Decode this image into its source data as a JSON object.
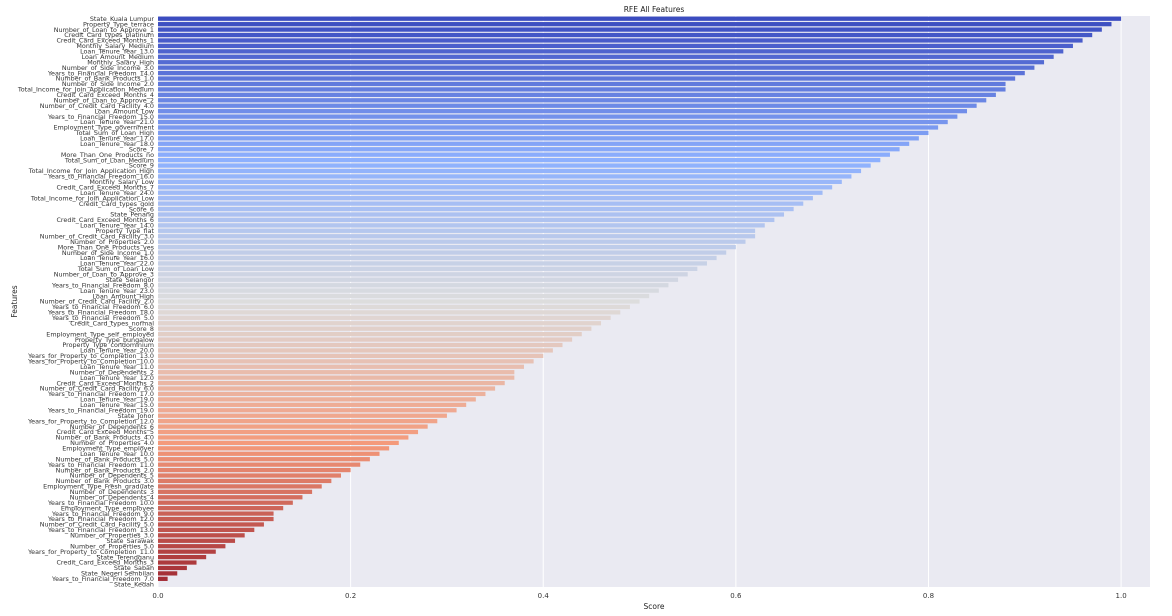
{
  "chart_data": {
    "type": "bar",
    "orientation": "horizontal",
    "title": "RFE All Features",
    "xlabel": "Score",
    "ylabel": "Features",
    "xlim": [
      0.0,
      1.03
    ],
    "xticks": [
      "0.0",
      "0.2",
      "0.4",
      "0.6",
      "0.8",
      "1.0"
    ],
    "grid": true,
    "colormap": "coolwarm (blue at top, red at bottom)",
    "categories": [
      "State_Kuala Lumpur",
      "Property_Type_terrace",
      "Number_of_Loan_to_Approve_1",
      "Credit_Card_types_platinum",
      "Credit_Card_Exceed_Months_1",
      "Monthly_Salary_Medium",
      "Loan_Tenure_Year_13.0",
      "Loan_Amount_Medium",
      "Monthly_Salary_High",
      "Number_of_Side_Income_3.0",
      "Years_to_Financial_Freedom_14.0",
      "Number_of_Bank_Products_1.0",
      "Number_of_Side_Income_2.0",
      "Total_Income_for_Join_Application_Medium",
      "Credit_Card_Exceed_Months_4",
      "Number_of_Loan_to_Approve_2",
      "Number_of_Credit_Card_Facility_4.0",
      "Loan_Amount_Low",
      "Years_to_Financial_Freedom_15.0",
      "Loan_Tenure_Year_21.0",
      "Employment_Type_government",
      "Total_Sum_of_Loan_High",
      "Loan_Tenure_Year_17.0",
      "Loan_Tenure_Year_18.0",
      "Score_7",
      "More_Than_One_Products_no",
      "Total_Sum_of_Loan_Medium",
      "Score_9",
      "Total_Income_for_Join_Application_High",
      "Years_to_Financial_Freedom_16.0",
      "Monthly_Salary_Low",
      "Credit_Card_Exceed_Months_7",
      "Loan_Tenure_Year_24.0",
      "Total_Income_for_Join_Application_Low",
      "Credit_Card_types_gold",
      "Score_6",
      "State_Penang",
      "Credit_Card_Exceed_Months_6",
      "Loan_Tenure_Year_14.0",
      "Property_Type_flat",
      "Number_of_Credit_Card_Facility_3.0",
      "Number_of_Properties_2.0",
      "More_Than_One_Products_yes",
      "Number_of_Side_Income_1.0",
      "Loan_Tenure_Year_16.0",
      "Loan_Tenure_Year_22.0",
      "Total_Sum_of_Loan_Low",
      "Number_of_Loan_to_Approve_3",
      "State_Selangor",
      "Years_to_Financial_Freedom_8.0",
      "Loan_Tenure_Year_23.0",
      "Loan_Amount_High",
      "Number_of_Credit_Card_Facility_2.0",
      "Years_to_Financial_Freedom_6.0",
      "Years_to_Financial_Freedom_18.0",
      "Years_to_Financial_Freedom_5.0",
      "Credit_Card_types_normal",
      "Score_8",
      "Employment_Type_self_employed",
      "Property_Type_bungalow",
      "Property_Type_condominium",
      "Loan_Tenure_Year_20.0",
      "Years_for_Property_to_Completion_13.0",
      "Years_for_Property_to_Completion_10.0",
      "Loan_Tenure_Year_11.0",
      "Number_of_Dependents_2",
      "Loan_Tenure_Year_12.0",
      "Credit_Card_Exceed_Months_2",
      "Number_of_Credit_Card_Facility_6.0",
      "Years_to_Financial_Freedom_17.0",
      "Loan_Tenure_Year_19.0",
      "Loan_Tenure_Year_15.0",
      "Years_to_Financial_Freedom_19.0",
      "State_Johor",
      "Years_for_Property_to_Completion_12.0",
      "Number_of_Dependents_6",
      "Credit_Card_Exceed_Months_5",
      "Number_of_Bank_Products_4.0",
      "Number_of_Properties_4.0",
      "Employment_Type_employer",
      "Loan_Tenure_Year_10.0",
      "Number_of_Bank_Products_5.0",
      "Years_to_Financial_Freedom_11.0",
      "Number_of_Bank_Products_2.0",
      "Number_of_Dependents_5",
      "Number_of_Bank_Products_3.0",
      "Employment_Type_Fresh_graduate",
      "Number_of_Dependents_3",
      "Number_of_Dependents_4",
      "Years_to_Financial_Freedom_10.0",
      "Employment_Type_employee",
      "Years_to_Financial_Freedom_9.0",
      "Years_to_Financial_Freedom_12.0",
      "Number_of_Credit_Card_Facility_5.0",
      "Years_to_Financial_Freedom_13.0",
      "Number_of_Properties_3.0",
      "State_Sarawak",
      "Number_of_Properties_5.0",
      "Years_for_Property_to_Completion_11.0",
      "State_Terengganu",
      "Credit_Card_Exceed_Months_3",
      "State_Sabah",
      "State_Negeri Sembilan",
      "Years_to_Financial_Freedom_7.0",
      "State_Kedah"
    ],
    "values": [
      1.0,
      0.99,
      0.98,
      0.97,
      0.96,
      0.95,
      0.94,
      0.93,
      0.92,
      0.91,
      0.9,
      0.89,
      0.88,
      0.88,
      0.87,
      0.86,
      0.85,
      0.84,
      0.83,
      0.82,
      0.81,
      0.8,
      0.79,
      0.78,
      0.77,
      0.76,
      0.75,
      0.74,
      0.73,
      0.72,
      0.71,
      0.7,
      0.69,
      0.68,
      0.67,
      0.66,
      0.65,
      0.64,
      0.63,
      0.62,
      0.62,
      0.61,
      0.6,
      0.59,
      0.58,
      0.57,
      0.56,
      0.55,
      0.54,
      0.53,
      0.52,
      0.51,
      0.5,
      0.49,
      0.48,
      0.47,
      0.46,
      0.45,
      0.44,
      0.43,
      0.42,
      0.41,
      0.4,
      0.39,
      0.38,
      0.37,
      0.37,
      0.36,
      0.35,
      0.34,
      0.33,
      0.32,
      0.31,
      0.3,
      0.29,
      0.28,
      0.27,
      0.26,
      0.25,
      0.24,
      0.23,
      0.22,
      0.21,
      0.2,
      0.19,
      0.18,
      0.17,
      0.16,
      0.15,
      0.14,
      0.13,
      0.12,
      0.12,
      0.11,
      0.1,
      0.09,
      0.08,
      0.07,
      0.06,
      0.05,
      0.04,
      0.03,
      0.02,
      0.01,
      0.0
    ]
  }
}
